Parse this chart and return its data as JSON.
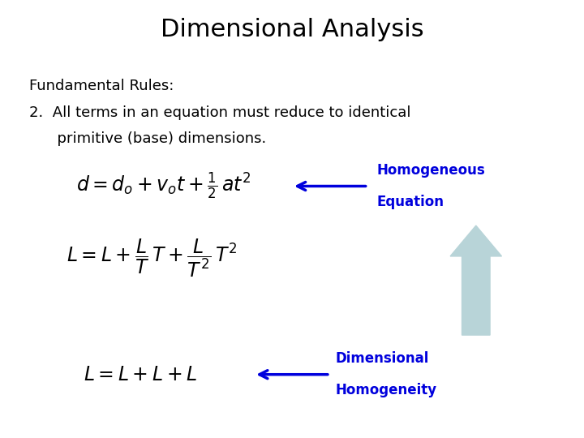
{
  "title": "Dimensional Analysis",
  "title_fontsize": 22,
  "title_color": "#000000",
  "bg_color": "#ffffff",
  "text_color": "#000000",
  "blue_color": "#0000dd",
  "arrow_light_color": "#b8d4d8",
  "fundamental_rules": "Fundamental Rules:",
  "rule2_line1": "2.  All terms in an equation must reduce to identical",
  "rule2_line2": "      primitive (base) dimensions.",
  "eq1_latex": "$d = d_o + v_o t + \\frac{1}{2}\\, at^2$",
  "eq2_latex": "$L = L + \\dfrac{L}{T}\\,T + \\dfrac{L}{T^2}\\,T^2$",
  "eq3_latex": "$L = L + L + L$",
  "label1_line1": "Homogeneous",
  "label1_line2": "Equation",
  "label2_line1": "Dimensional",
  "label2_line2": "Homogeneity",
  "text_fontsize": 13,
  "eq_fontsize": 17,
  "label_fontsize": 12
}
